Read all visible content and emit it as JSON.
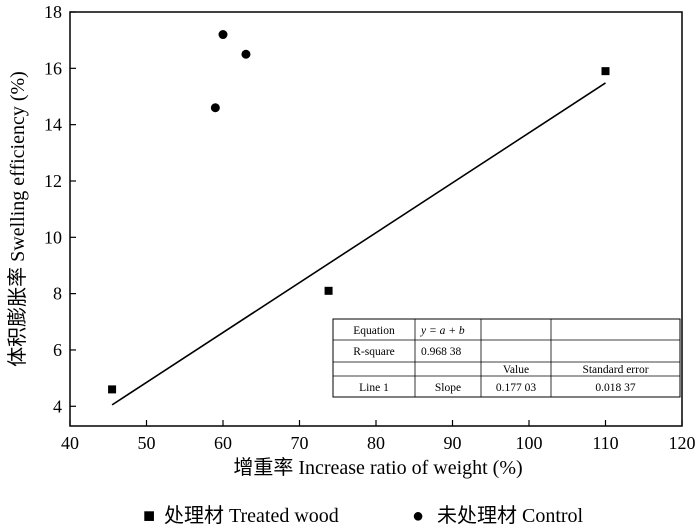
{
  "chart_data": {
    "type": "scatter",
    "xlabel": "增重率 Increase ratio of weight (%)",
    "ylabel": "体积膨胀率 Swelling efficiency (%)",
    "xlim": [
      40,
      120
    ],
    "ylim": [
      3.3,
      18
    ],
    "xticks": [
      40,
      50,
      60,
      70,
      80,
      90,
      100,
      110,
      120
    ],
    "yticks": [
      4,
      6,
      8,
      10,
      12,
      14,
      16,
      18
    ],
    "legend_position": "bottom",
    "series": [
      {
        "name": "处理材 Treated wood",
        "marker": "square",
        "legend_symbol": "■",
        "points": [
          [
            45.5,
            4.6
          ],
          [
            73.8,
            8.1
          ],
          [
            110.0,
            15.9
          ]
        ]
      },
      {
        "name": "未处理材 Control",
        "marker": "circle",
        "legend_symbol": "●",
        "points": [
          [
            59.0,
            14.6
          ],
          [
            60.0,
            17.2
          ],
          [
            63.0,
            16.5
          ]
        ]
      }
    ],
    "fit_line": {
      "x": [
        45.5,
        110.0
      ],
      "y": [
        4.05,
        15.48
      ]
    },
    "stats_table": {
      "rows": [
        [
          "Equation",
          "y = a + b",
          "",
          ""
        ],
        [
          "R-square",
          "0.968 38",
          "",
          ""
        ],
        [
          "",
          "",
          "Value",
          "Standard error"
        ],
        [
          "Line 1",
          "Slope",
          "0.177 03",
          "0.018 37"
        ]
      ]
    }
  }
}
